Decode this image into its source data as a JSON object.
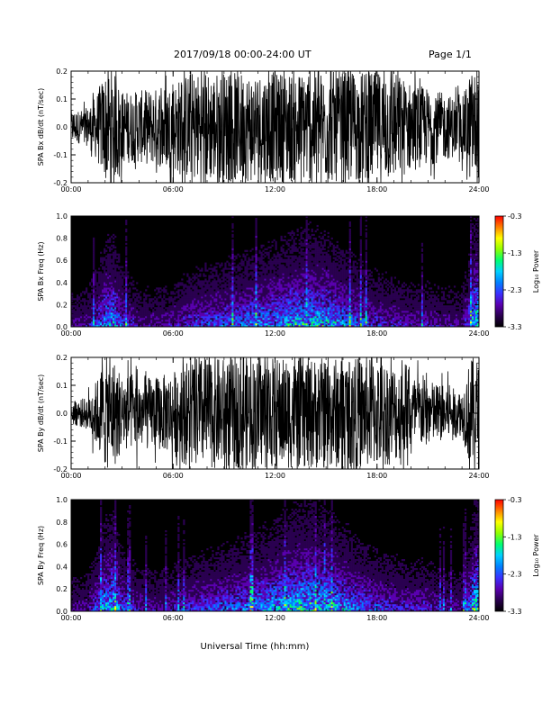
{
  "header": {
    "date_range": "2017/09/18   00:00-24:00 UT",
    "page": "Page 1/1"
  },
  "x_axis_title": "Universal Time (hh:mm)",
  "colors": {
    "trace": "#000000",
    "spectrogram_background": "#000000",
    "colormap": [
      "#000000",
      "#2a0050",
      "#5a00b0",
      "#3a30ff",
      "#0080ff",
      "#00d0ff",
      "#00ff70",
      "#90ff00",
      "#ffff00",
      "#ff8000",
      "#ff0000"
    ]
  },
  "chart_data": [
    {
      "type": "line",
      "panel": "bx_waveform",
      "ylabel": "SPA Bx dB/dt (nT/sec)",
      "xlim": [
        0,
        24
      ],
      "ylim": [
        -0.2,
        0.2
      ],
      "x_ticks": [
        "00:00",
        "06:00",
        "12:00",
        "18:00",
        "24:00"
      ],
      "y_ticks": [
        "0.2",
        "0.1",
        "0.0",
        "-0.1",
        "-0.2"
      ],
      "amplitude_envelope": {
        "hour": [
          0,
          0.5,
          1,
          1.5,
          2,
          2.5,
          3,
          4,
          5,
          6,
          7,
          8,
          9,
          10,
          11,
          12,
          13,
          14,
          15,
          16,
          17,
          18,
          19,
          20,
          21,
          22,
          23,
          23.5,
          24
        ],
        "amplitude": [
          0.06,
          0.06,
          0.07,
          0.12,
          0.2,
          0.2,
          0.13,
          0.13,
          0.14,
          0.16,
          0.2,
          0.2,
          0.2,
          0.2,
          0.2,
          0.2,
          0.2,
          0.2,
          0.2,
          0.2,
          0.2,
          0.2,
          0.2,
          0.16,
          0.14,
          0.12,
          0.1,
          0.2,
          0.2
        ]
      }
    },
    {
      "type": "heatmap",
      "panel": "bx_spectrogram",
      "ylabel": "SPA Bx Freq (Hz)",
      "xlim": [
        0,
        24
      ],
      "ylim": [
        0,
        1.0
      ],
      "x_ticks": [
        "00:00",
        "06:00",
        "12:00",
        "18:00",
        "24:00"
      ],
      "y_ticks": [
        "1.0",
        "0.8",
        "0.6",
        "0.4",
        "0.2",
        "0.0"
      ],
      "colorbar": {
        "label": "Log₁₀ Power",
        "range": [
          -3.3,
          -0.3
        ],
        "ticks": [
          "-0.3",
          "-1.3",
          "-2.3",
          "-3.3"
        ]
      },
      "activity_profile": {
        "hour": [
          0,
          1,
          2,
          2.5,
          3,
          4,
          5,
          6,
          7,
          8,
          9,
          10,
          11,
          12,
          13,
          14,
          15,
          16,
          17,
          18,
          19,
          20,
          21,
          22,
          23,
          23.8,
          24
        ],
        "intensity": [
          0.25,
          0.3,
          0.7,
          0.75,
          0.5,
          0.3,
          0.3,
          0.35,
          0.45,
          0.5,
          0.55,
          0.6,
          0.65,
          0.7,
          0.75,
          0.8,
          0.75,
          0.65,
          0.55,
          0.45,
          0.4,
          0.35,
          0.35,
          0.3,
          0.3,
          0.9,
          0.9
        ]
      }
    },
    {
      "type": "line",
      "panel": "by_waveform",
      "ylabel": "SPA By dB/dt (nT/sec)",
      "xlim": [
        0,
        24
      ],
      "ylim": [
        -0.2,
        0.2
      ],
      "x_ticks": [
        "00:00",
        "06:00",
        "12:00",
        "18:00",
        "24:00"
      ],
      "y_ticks": [
        "0.2",
        "0.1",
        "0.0",
        "-0.1",
        "-0.2"
      ],
      "amplitude_envelope": {
        "hour": [
          0,
          0.5,
          1,
          1.5,
          2,
          2.5,
          3,
          4,
          5,
          6,
          7,
          8,
          9,
          10,
          11,
          12,
          13,
          14,
          15,
          16,
          17,
          18,
          19,
          20,
          21,
          22,
          23,
          23.5,
          24
        ],
        "amplitude": [
          0.04,
          0.05,
          0.06,
          0.12,
          0.2,
          0.2,
          0.14,
          0.13,
          0.13,
          0.15,
          0.2,
          0.2,
          0.2,
          0.2,
          0.2,
          0.2,
          0.2,
          0.2,
          0.2,
          0.2,
          0.2,
          0.2,
          0.18,
          0.14,
          0.12,
          0.1,
          0.08,
          0.2,
          0.2
        ]
      }
    },
    {
      "type": "heatmap",
      "panel": "by_spectrogram",
      "ylabel": "SPA By Freq (Hz)",
      "xlim": [
        0,
        24
      ],
      "ylim": [
        0,
        1.0
      ],
      "x_ticks": [
        "00:00",
        "06:00",
        "12:00",
        "18:00",
        "24:00"
      ],
      "y_ticks": [
        "1.0",
        "0.8",
        "0.6",
        "0.4",
        "0.2",
        "0.0"
      ],
      "colorbar": {
        "label": "Log₁₀ Power",
        "range": [
          -3.3,
          -0.3
        ],
        "ticks": [
          "-0.3",
          "-1.3",
          "-2.3",
          "-3.3"
        ]
      },
      "activity_profile": {
        "hour": [
          0,
          1,
          2,
          2.5,
          3,
          4,
          5,
          6,
          7,
          8,
          9,
          10,
          11,
          12,
          13,
          14,
          15,
          16,
          17,
          18,
          19,
          20,
          21,
          22,
          23,
          23.8,
          24
        ],
        "intensity": [
          0.25,
          0.3,
          0.75,
          0.8,
          0.55,
          0.35,
          0.3,
          0.35,
          0.45,
          0.5,
          0.55,
          0.6,
          0.65,
          0.75,
          0.8,
          0.85,
          0.8,
          0.7,
          0.6,
          0.5,
          0.45,
          0.4,
          0.4,
          0.3,
          0.3,
          0.9,
          0.9
        ]
      }
    }
  ]
}
